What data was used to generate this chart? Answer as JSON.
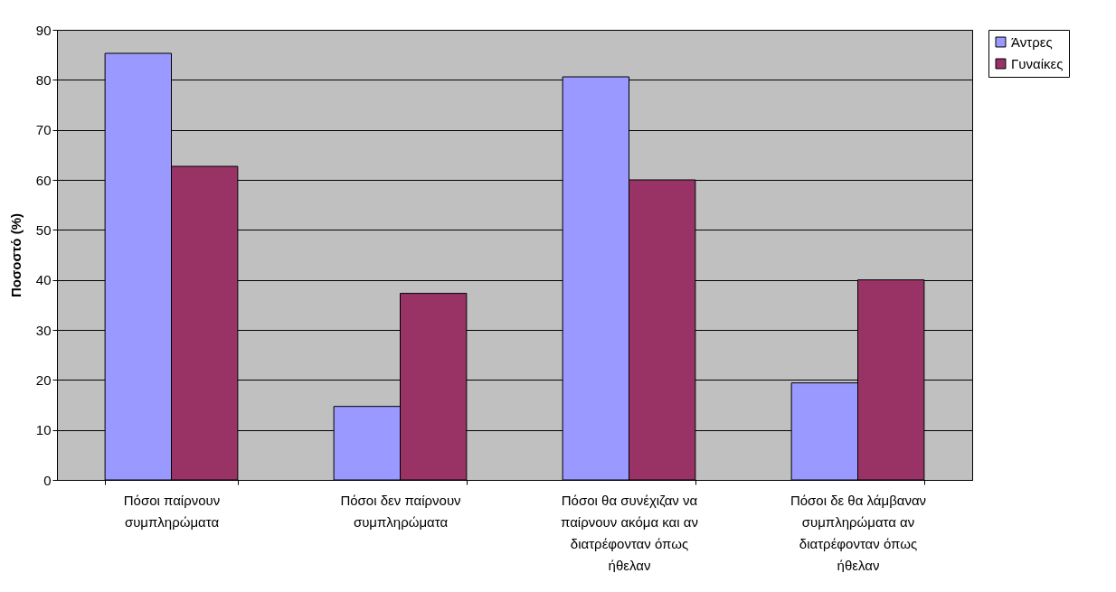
{
  "chart_data": {
    "type": "bar",
    "ylabel": "Ποσοστό (%)",
    "categories": [
      "Πόσοι παίρνουν συμπληρώματα",
      "Πόσοι δεν παίρνουν συμπληρώματα",
      "Πόσοι θα συνέχιζαν να παίρνουν ακόμα και αν διατρέφονταν όπως ήθελαν",
      "Πόσοι δε θα λάμβαναν συμπληρώματα αν διατρέφονταν όπως ήθελαν"
    ],
    "series": [
      {
        "name": "Άντρες",
        "color": "#9999ff",
        "values": [
          85.3,
          14.7,
          80.6,
          19.4
        ]
      },
      {
        "name": "Γυναίκες",
        "color": "#993366",
        "values": [
          62.7,
          37.3,
          60,
          40
        ]
      }
    ],
    "ylim": [
      0,
      90
    ],
    "yticks": [
      0,
      10,
      20,
      30,
      40,
      50,
      60,
      70,
      80,
      90
    ],
    "grid": "y",
    "legend": "right"
  }
}
